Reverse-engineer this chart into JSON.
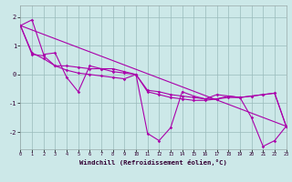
{
  "xlabel": "Windchill (Refroidissement éolien,°C)",
  "bg_color": "#cce8e8",
  "line_color": "#aa00aa",
  "grid_color": "#99bbbb",
  "x_min": 0,
  "x_max": 23,
  "y_min": -2.6,
  "y_max": 2.4,
  "yticks": [
    -2,
    -1,
    0,
    1,
    2
  ],
  "xticks": [
    0,
    1,
    2,
    3,
    4,
    5,
    6,
    7,
    8,
    9,
    10,
    11,
    12,
    13,
    14,
    15,
    16,
    17,
    18,
    19,
    20,
    21,
    22,
    23
  ],
  "series": [
    {
      "x": [
        0,
        1,
        2,
        3,
        4,
        5,
        6,
        7,
        8,
        9,
        10,
        11,
        12,
        13,
        14,
        15,
        16,
        17,
        18,
        19,
        20,
        21,
        22,
        23
      ],
      "y": [
        1.7,
        1.9,
        0.7,
        0.75,
        -0.1,
        -0.6,
        0.3,
        0.2,
        0.2,
        0.1,
        0.0,
        -2.05,
        -2.3,
        -1.85,
        -0.6,
        -0.75,
        -0.85,
        -0.7,
        -0.75,
        -0.8,
        -1.5,
        -2.5,
        -2.3,
        -1.8
      ],
      "marker": true
    },
    {
      "x": [
        0,
        1,
        2,
        3,
        4,
        5,
        6,
        7,
        8,
        9,
        10,
        11,
        12,
        13,
        14,
        15,
        16,
        17,
        18,
        19,
        20,
        21,
        22,
        23
      ],
      "y": [
        1.7,
        0.7,
        0.65,
        0.3,
        0.3,
        0.25,
        0.2,
        0.2,
        0.1,
        0.05,
        0.0,
        -0.6,
        -0.7,
        -0.8,
        -0.85,
        -0.9,
        -0.9,
        -0.85,
        -0.75,
        -0.8,
        -0.75,
        -0.7,
        -0.65,
        -1.8
      ],
      "marker": true
    },
    {
      "x": [
        0,
        23
      ],
      "y": [
        1.7,
        -1.8
      ],
      "marker": false
    },
    {
      "x": [
        0,
        1,
        2,
        3,
        4,
        5,
        6,
        7,
        8,
        9,
        10,
        11,
        12,
        13,
        14,
        15,
        16,
        17,
        18,
        19,
        20,
        21,
        22,
        23
      ],
      "y": [
        1.7,
        0.75,
        0.55,
        0.3,
        0.15,
        0.05,
        0.0,
        -0.05,
        -0.1,
        -0.15,
        0.0,
        -0.55,
        -0.6,
        -0.7,
        -0.75,
        -0.8,
        -0.85,
        -0.85,
        -0.8,
        -0.8,
        -0.75,
        -0.7,
        -0.65,
        -1.8
      ],
      "marker": true
    }
  ]
}
